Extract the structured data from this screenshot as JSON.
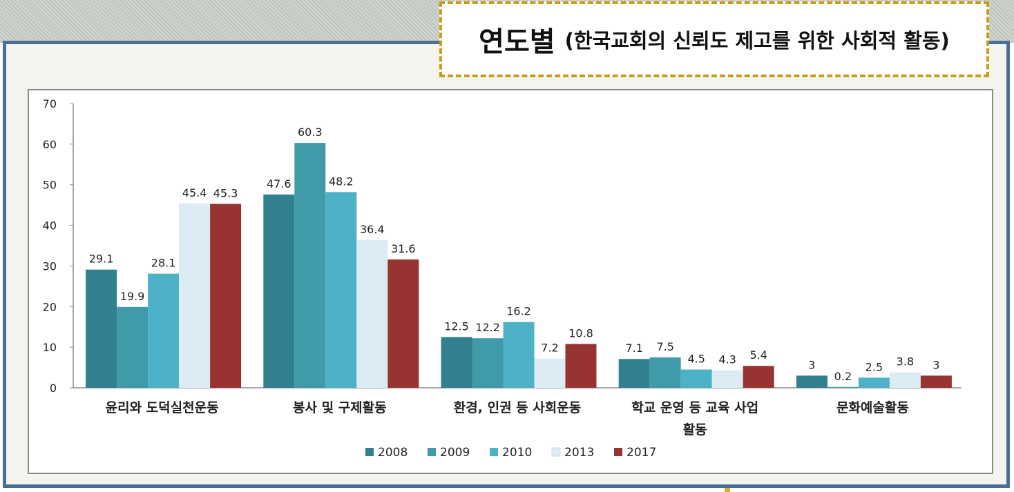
{
  "header": {
    "title_main": "연도별",
    "title_sub": "(한국교회의 신뢰도 제고를 위한 사회적 활동)"
  },
  "chart_data": {
    "type": "bar",
    "categories": [
      [
        "윤리와 도덕실천운동"
      ],
      [
        "봉사 및 구제활동"
      ],
      [
        "환경, 인권 등 사회운동"
      ],
      [
        "학교 운영 등 교육 사업",
        "활동"
      ],
      [
        "문화예술활동"
      ]
    ],
    "series": [
      {
        "name": "2008",
        "color": "#31808f",
        "values": [
          29.1,
          47.6,
          12.5,
          7.1,
          3
        ]
      },
      {
        "name": "2009",
        "color": "#419aa9",
        "values": [
          19.9,
          60.3,
          12.2,
          7.5,
          0.2
        ]
      },
      {
        "name": "2010",
        "color": "#4db2c7",
        "values": [
          28.1,
          48.2,
          16.2,
          4.5,
          2.5
        ]
      },
      {
        "name": "2013",
        "color": "#dbecf5",
        "values": [
          45.4,
          36.4,
          7.2,
          4.3,
          3.8
        ]
      },
      {
        "name": "2017",
        "color": "#973432",
        "values": [
          45.3,
          31.6,
          10.8,
          5.4,
          3
        ]
      }
    ],
    "ylim": [
      0,
      70
    ],
    "yticks": [
      0,
      10,
      20,
      30,
      40,
      50,
      60,
      70
    ],
    "legend_position": "bottom",
    "grid": false
  }
}
